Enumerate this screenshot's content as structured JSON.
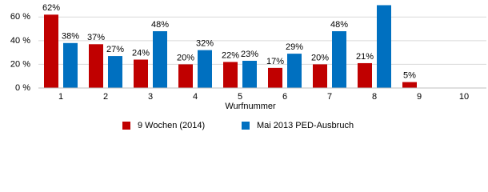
{
  "chart_data": {
    "type": "bar",
    "x_label": "Wurfnummer",
    "categories": [
      "1",
      "2",
      "3",
      "4",
      "5",
      "6",
      "7",
      "8",
      "9",
      "10"
    ],
    "series": [
      {
        "name": "9 Wochen (2014)",
        "color": "#c00000",
        "values": [
          62,
          37,
          24,
          20,
          22,
          17,
          20,
          21,
          5,
          null
        ],
        "value_labels": [
          "62%",
          "37%",
          "24%",
          "20%",
          "22%",
          "17%",
          "20%",
          "21%",
          "5%",
          null
        ]
      },
      {
        "name": "Mai 2013 PED-Ausbruch",
        "color": "#0070c0",
        "values": [
          38,
          27,
          48,
          32,
          23,
          29,
          48,
          70,
          null,
          null
        ],
        "value_labels": [
          "38%",
          "27%",
          "48%",
          "32%",
          "23%",
          "29%",
          "48%",
          null,
          null,
          null
        ]
      }
    ],
    "ylim": [
      0,
      71
    ],
    "yticks": [
      {
        "value": 0,
        "label": "0 %"
      },
      {
        "value": 20,
        "label": "20 %"
      },
      {
        "value": 40,
        "label": "40 %"
      },
      {
        "value": 60,
        "label": "60 %"
      }
    ],
    "grid": true
  }
}
